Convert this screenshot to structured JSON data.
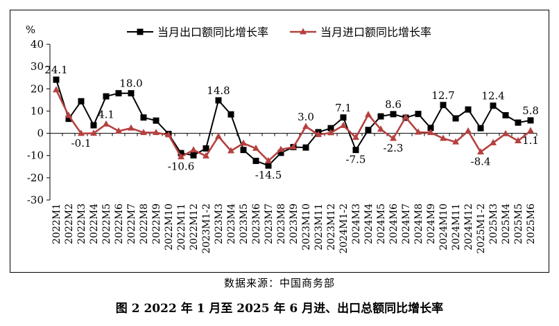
{
  "source_text": "数据来源：中国商务部",
  "caption": "图 2  2022 年 1 月至 2025 年 6 月进、出口总额同比增长率",
  "colors": {
    "export": "#000000",
    "import": "#b5413f",
    "axis": "#000000"
  },
  "chart_data": {
    "type": "line",
    "unit_label": "%",
    "ylim": [
      -30,
      40
    ],
    "yticks": [
      -30,
      -20,
      -10,
      0,
      10,
      20,
      30,
      40
    ],
    "grid": false,
    "legend_position": "top",
    "categories": [
      "2022M1",
      "2022M2",
      "2022M3",
      "2022M4",
      "2022M5",
      "2022M6",
      "2022M7",
      "2022M8",
      "2022M9",
      "2022M10",
      "2022M11",
      "2022M12",
      "2023M1-2",
      "2023M3",
      "2023M4",
      "2023M5",
      "2023M6",
      "2023M7",
      "2023M8",
      "2023M9",
      "2023M10",
      "2023M11",
      "2023M12",
      "2024M1-2",
      "2024M3",
      "2024M4",
      "2024M5",
      "2024M6",
      "2024M7",
      "2024M8",
      "2024M9",
      "2024M10",
      "2024M11",
      "2024M12",
      "2025M1-2",
      "2025M3",
      "2025M4",
      "2025M5",
      "2025M6"
    ],
    "series": [
      {
        "name": "当月出口额同比增长率",
        "marker": "square",
        "values": [
          24.1,
          6.5,
          14.4,
          3.6,
          16.6,
          18.0,
          18.0,
          7.1,
          5.7,
          -0.3,
          -8.9,
          -9.9,
          -6.8,
          14.8,
          8.5,
          -7.5,
          -12.4,
          -14.5,
          -8.8,
          -6.2,
          -6.4,
          0.5,
          2.3,
          7.1,
          -7.5,
          1.5,
          7.6,
          8.6,
          7.0,
          8.7,
          2.4,
          12.7,
          6.7,
          10.7,
          2.3,
          12.4,
          8.1,
          4.8,
          5.8
        ]
      },
      {
        "name": "当月进口额同比增长率",
        "marker": "triangle",
        "values": [
          19.5,
          8.0,
          -0.1,
          0.0,
          4.1,
          1.0,
          2.3,
          0.3,
          0.3,
          -0.7,
          -10.6,
          -7.5,
          -10.2,
          -1.4,
          -7.9,
          -4.5,
          -6.8,
          -12.4,
          -7.3,
          -6.2,
          3.0,
          -0.6,
          0.2,
          3.5,
          -1.9,
          8.4,
          1.8,
          -2.3,
          7.2,
          0.5,
          0.3,
          -2.3,
          -3.9,
          1.0,
          -8.4,
          -4.3,
          -0.2,
          -3.4,
          1.1
        ]
      }
    ],
    "data_labels": [
      {
        "series": 0,
        "index": 0,
        "text": "24.1",
        "pos": "above"
      },
      {
        "series": 1,
        "index": 2,
        "text": "-0.1",
        "pos": "below"
      },
      {
        "series": 1,
        "index": 4,
        "text": "4.1",
        "pos": "above"
      },
      {
        "series": 0,
        "index": 6,
        "text": "18.0",
        "pos": "above"
      },
      {
        "series": 1,
        "index": 10,
        "text": "-10.6",
        "pos": "below"
      },
      {
        "series": 0,
        "index": 13,
        "text": "14.8",
        "pos": "above"
      },
      {
        "series": 0,
        "index": 17,
        "text": "-14.5",
        "pos": "below"
      },
      {
        "series": 1,
        "index": 20,
        "text": "3.0",
        "pos": "above"
      },
      {
        "series": 0,
        "index": 23,
        "text": "7.1",
        "pos": "above"
      },
      {
        "series": 0,
        "index": 24,
        "text": "-7.5",
        "pos": "below"
      },
      {
        "series": 0,
        "index": 27,
        "text": "8.6",
        "pos": "above"
      },
      {
        "series": 1,
        "index": 27,
        "text": "-2.3",
        "pos": "below"
      },
      {
        "series": 0,
        "index": 31,
        "text": "12.7",
        "pos": "above"
      },
      {
        "series": 0,
        "index": 35,
        "text": "12.4",
        "pos": "above"
      },
      {
        "series": 1,
        "index": 34,
        "text": "-8.4",
        "pos": "below"
      },
      {
        "series": 0,
        "index": 38,
        "text": "5.8",
        "pos": "above"
      },
      {
        "series": 1,
        "index": 38,
        "text": "1.1",
        "pos": "below"
      }
    ]
  }
}
